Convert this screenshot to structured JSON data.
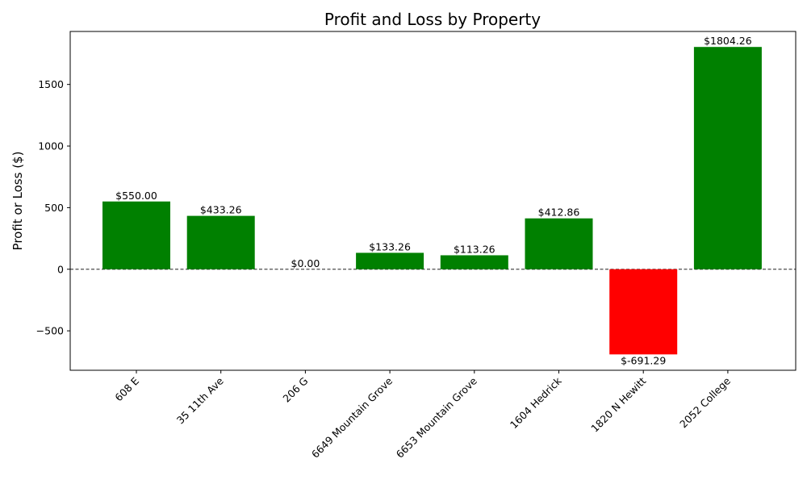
{
  "chart_data": {
    "type": "bar",
    "title": "Profit and Loss by Property",
    "xlabel": "",
    "ylabel": "Profit or Loss ($)",
    "categories": [
      "608 E",
      "35 11th Ave",
      "206 G",
      "6649 Mountain Grove",
      "6653 Mountain Grove",
      "1604 Hedrick",
      "1820 N Hewitt",
      "2052 College"
    ],
    "values": [
      550.0,
      433.26,
      0.0,
      133.26,
      113.26,
      412.86,
      -691.29,
      1804.26
    ],
    "value_labels": [
      "$550.00",
      "$433.26",
      "$0.00",
      "$133.26",
      "$113.26",
      "$412.86",
      "$-691.29",
      "$1804.26"
    ],
    "ylim": [
      -820,
      1930
    ],
    "yticks": [
      -500,
      0,
      500,
      1000,
      1500
    ],
    "ytick_labels": [
      "−500",
      "0",
      "500",
      "1000",
      "1500"
    ],
    "zero_line": "dashed",
    "grid": false,
    "colors": {
      "profit": "#008000",
      "loss": "#ff0000"
    }
  }
}
